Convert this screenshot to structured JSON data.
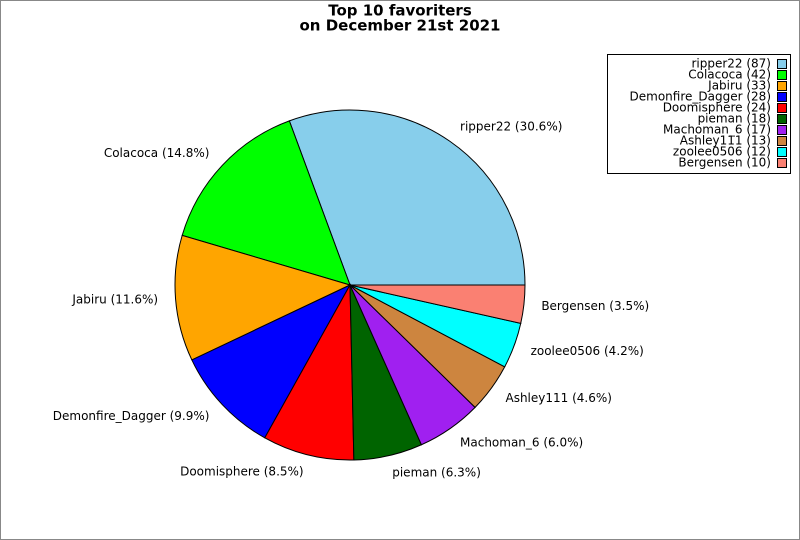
{
  "chart_data": {
    "type": "pie",
    "title": "Top 10 favoriters",
    "subtitle": "on December 21st 2021",
    "categories": [
      "ripper22",
      "Colacoca",
      "Jabiru",
      "Demonfire_Dagger",
      "Doomisphere",
      "pieman",
      "Machoman_6",
      "Ashley111",
      "zoolee0506",
      "Bergensen"
    ],
    "values": [
      87,
      42,
      33,
      28,
      24,
      18,
      17,
      13,
      12,
      10
    ],
    "slice_labels": [
      "ripper22 (30.6%)",
      "Colacoca (14.8%)",
      "Jabiru (11.6%)",
      "Demonfire_Dagger (9.9%)",
      "Doomisphere (8.5%)",
      "pieman (6.3%)",
      "Machoman_6 (6.0%)",
      "Ashley111 (4.6%)",
      "zoolee0506 (4.2%)",
      "Bergensen (3.5%)"
    ],
    "legend_labels": [
      "ripper22 (87)",
      "Colacoca (42)",
      "Jabiru (33)",
      "Demonfire_Dagger (28)",
      "Doomisphere (24)",
      "pieman (18)",
      "Machoman_6 (17)",
      "Ashley111 (13)",
      "zoolee0506 (12)",
      "Bergensen (10)"
    ],
    "colors": [
      "#87ceeb",
      "#00ff00",
      "#ffa500",
      "#0000ff",
      "#ff0000",
      "#006400",
      "#a020f0",
      "#cd853f",
      "#00ffff",
      "#fa8072"
    ],
    "legend": "upper right"
  }
}
